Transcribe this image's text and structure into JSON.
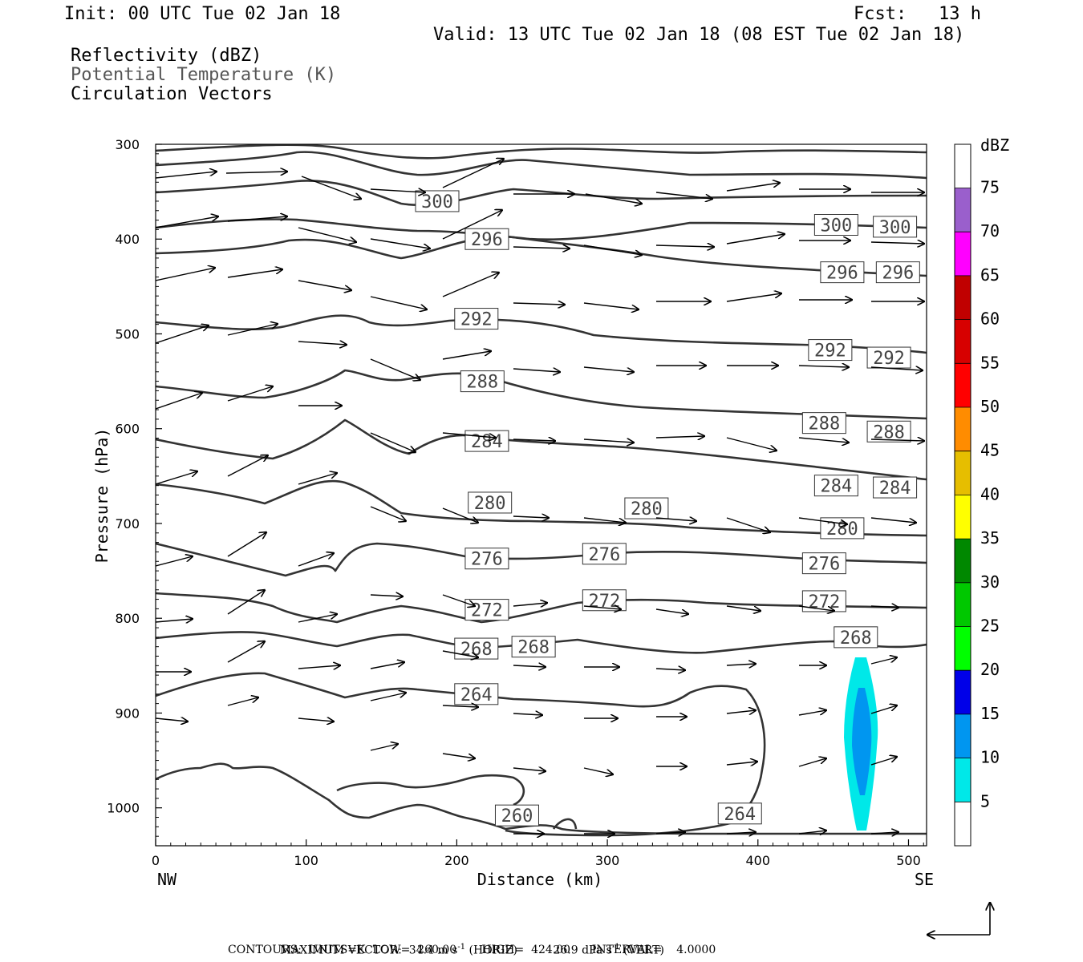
{
  "header": {
    "init": "Init: 00 UTC Tue 02 Jan 18",
    "fcst": "Fcst:   13 h",
    "valid": "Valid: 13 UTC Tue 02 Jan 18 (08 EST Tue 02 Jan 18)",
    "fields": [
      "Reflectivity (dBZ)",
      "Potential Temperature (K)",
      "Circulation Vectors"
    ]
  },
  "footer": {
    "line1_prefix": "MAXIMUM VECTOR:  34.4 m s",
    "line1_horiz": " (HORIZ)",
    "line1_vert_prefix": "26.9 dPa s",
    "line1_vert": " (VERT)",
    "exponent": "-1",
    "line2": "CONTOURS:  UNITS=K  LOW=  260.00       HIGH=  424.00      INTERVAL=    4.0000"
  },
  "colorbar": {
    "unit": "dBZ",
    "levels": [
      "5",
      "10",
      "15",
      "20",
      "25",
      "30",
      "35",
      "40",
      "45",
      "50",
      "55",
      "60",
      "65",
      "70",
      "75"
    ],
    "colors": [
      "#00e8e8",
      "#0096f0",
      "#0000e8",
      "#00ff00",
      "#00c800",
      "#008800",
      "#ffff00",
      "#e6be00",
      "#ff8c00",
      "#ff0000",
      "#d70000",
      "#c00000",
      "#ff00ff",
      "#9a5fcc"
    ]
  },
  "chart_data": {
    "type": "contour",
    "xlabel": "Distance (km)",
    "ylabel": "Pressure (hPa)",
    "xlim": [
      0,
      512
    ],
    "ylim": [
      1040,
      300
    ],
    "xticks": [
      0,
      100,
      200,
      300,
      400,
      500
    ],
    "yticks": [
      300,
      400,
      500,
      600,
      700,
      800,
      900,
      1000
    ],
    "x_end_labels": [
      "NW",
      "SE"
    ],
    "contour_labels": [
      {
        "v": "300",
        "x": 187,
        "p": 360
      },
      {
        "v": "300",
        "x": 452,
        "p": 385
      },
      {
        "v": "300",
        "x": 491,
        "p": 387
      },
      {
        "v": "296",
        "x": 220,
        "p": 400
      },
      {
        "v": "296",
        "x": 456,
        "p": 435
      },
      {
        "v": "296",
        "x": 493,
        "p": 435
      },
      {
        "v": "292",
        "x": 213,
        "p": 484
      },
      {
        "v": "292",
        "x": 448,
        "p": 517
      },
      {
        "v": "292",
        "x": 487,
        "p": 525
      },
      {
        "v": "288",
        "x": 217,
        "p": 550
      },
      {
        "v": "288",
        "x": 444,
        "p": 594
      },
      {
        "v": "288",
        "x": 487,
        "p": 603
      },
      {
        "v": "284",
        "x": 220,
        "p": 613
      },
      {
        "v": "284",
        "x": 452,
        "p": 660
      },
      {
        "v": "284",
        "x": 491,
        "p": 662
      },
      {
        "v": "280",
        "x": 222,
        "p": 678
      },
      {
        "v": "280",
        "x": 326,
        "p": 684
      },
      {
        "v": "280",
        "x": 456,
        "p": 705
      },
      {
        "v": "276",
        "x": 220,
        "p": 737
      },
      {
        "v": "276",
        "x": 298,
        "p": 732
      },
      {
        "v": "276",
        "x": 444,
        "p": 742
      },
      {
        "v": "272",
        "x": 220,
        "p": 791
      },
      {
        "v": "272",
        "x": 298,
        "p": 781
      },
      {
        "v": "272",
        "x": 444,
        "p": 782
      },
      {
        "v": "268",
        "x": 213,
        "p": 832
      },
      {
        "v": "268",
        "x": 251,
        "p": 830
      },
      {
        "v": "268",
        "x": 465,
        "p": 820
      },
      {
        "v": "264",
        "x": 213,
        "p": 880
      },
      {
        "v": "264",
        "x": 388,
        "p": 1006
      },
      {
        "v": "260",
        "x": 240,
        "p": 1008
      }
    ],
    "reflectivity_max_dbz": 10,
    "max_vector": {
      "horiz_m_s": 34.4,
      "vert_dPa_s": 26.9
    },
    "contours": {
      "units": "K",
      "low": 260.0,
      "high": 424.0,
      "interval": 4.0
    }
  }
}
